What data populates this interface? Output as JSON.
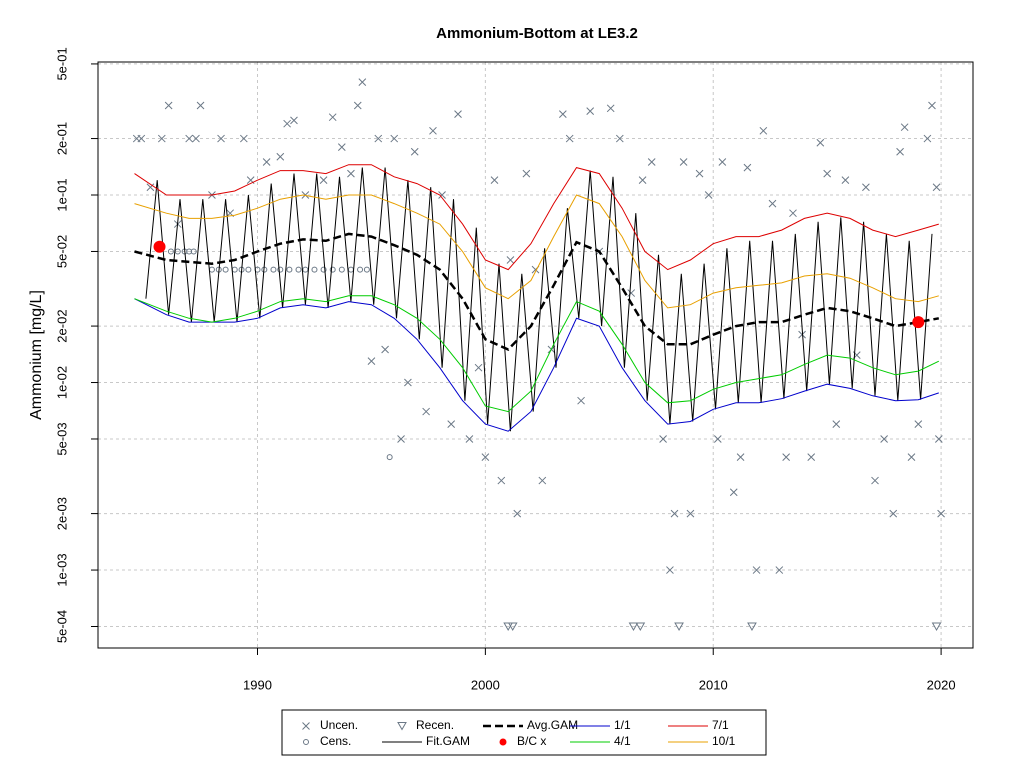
{
  "chart_data": {
    "type": "scatter",
    "title": "Ammonium-Bottom at LE3.2",
    "y_label": "Ammonium [mg/L]",
    "ylog": true,
    "grid": true,
    "xlim": [
      1983.0,
      2021.4
    ],
    "ylim": [
      0.000384,
      0.512
    ],
    "xticks": [
      1990,
      2000,
      2010,
      2020
    ],
    "yticks": [
      {
        "value": 0.0005,
        "label": "5e-04"
      },
      {
        "value": 0.001,
        "label": "1e-03"
      },
      {
        "value": 0.002,
        "label": "2e-03"
      },
      {
        "value": 0.005,
        "label": "5e-03"
      },
      {
        "value": 0.01,
        "label": "1e-02"
      },
      {
        "value": 0.02,
        "label": "2e-02"
      },
      {
        "value": 0.05,
        "label": "5e-02"
      },
      {
        "value": 0.1,
        "label": "1e-01"
      },
      {
        "value": 0.2,
        "label": "2e-01"
      },
      {
        "value": 0.5,
        "label": "5e-01"
      }
    ],
    "series": [
      {
        "name": "Uncen.",
        "color": "#6b7886",
        "marker": "x",
        "x": [
          1984.7,
          1984.9,
          1985.3,
          1985.8,
          1986.1,
          1986.5,
          1987.0,
          1987.3,
          1987.5,
          1988.0,
          1988.4,
          1988.8,
          1989.4,
          1989.7,
          1990.4,
          1991.0,
          1991.3,
          1991.6,
          1992.1,
          1992.9,
          1993.3,
          1993.7,
          1994.1,
          1994.4,
          1994.6,
          1995.0,
          1995.3,
          1995.6,
          1996.0,
          1996.3,
          1996.6,
          1996.9,
          1997.4,
          1997.7,
          1998.1,
          1998.5,
          1998.8,
          1999.3,
          1999.7,
          2000.0,
          2000.4,
          2000.7,
          2001.1,
          2001.4,
          2001.8,
          2002.2,
          2002.5,
          2002.9,
          2003.4,
          2003.7,
          2004.2,
          2004.6,
          2005.0,
          2005.5,
          2005.9,
          2006.4,
          2006.9,
          2007.3,
          2007.8,
          2008.1,
          2008.3,
          2008.7,
          2009.0,
          2009.4,
          2009.8,
          2010.2,
          2010.4,
          2010.9,
          2011.2,
          2011.5,
          2011.9,
          2012.2,
          2012.6,
          2012.9,
          2013.2,
          2013.5,
          2013.9,
          2014.3,
          2014.7,
          2015.0,
          2015.4,
          2015.8,
          2016.3,
          2016.7,
          2017.1,
          2017.5,
          2017.9,
          2018.2,
          2018.4,
          2018.7,
          2019.0,
          2019.4,
          2019.6,
          2019.8,
          2019.9,
          2020.0
        ],
        "values": [
          0.2,
          0.2,
          0.11,
          0.2,
          0.3,
          0.07,
          0.2,
          0.2,
          0.3,
          0.1,
          0.2,
          0.08,
          0.2,
          0.12,
          0.15,
          0.16,
          0.24,
          0.25,
          0.1,
          0.12,
          0.26,
          0.18,
          0.13,
          0.3,
          0.4,
          0.013,
          0.2,
          0.015,
          0.2,
          0.005,
          0.01,
          0.17,
          0.007,
          0.22,
          0.1,
          0.006,
          0.27,
          0.005,
          0.012,
          0.004,
          0.12,
          0.003,
          0.045,
          0.002,
          0.13,
          0.04,
          0.003,
          0.015,
          0.27,
          0.2,
          0.008,
          0.28,
          0.05,
          0.29,
          0.2,
          0.03,
          0.12,
          0.15,
          0.005,
          0.001,
          0.002,
          0.15,
          0.002,
          0.13,
          0.1,
          0.005,
          0.15,
          0.0026,
          0.004,
          0.14,
          0.001,
          0.22,
          0.09,
          0.001,
          0.004,
          0.08,
          0.018,
          0.004,
          0.19,
          0.13,
          0.006,
          0.12,
          0.014,
          0.11,
          0.003,
          0.005,
          0.002,
          0.17,
          0.23,
          0.004,
          0.006,
          0.2,
          0.3,
          0.11,
          0.005,
          0.002
        ]
      },
      {
        "name": "Cens.",
        "color": "#6b7886",
        "marker": "circle",
        "x": [
          1986.2,
          1986.5,
          1986.8,
          1987.0,
          1987.2,
          1988.0,
          1988.3,
          1988.6,
          1989.0,
          1989.3,
          1989.6,
          1990.0,
          1990.3,
          1990.7,
          1991.0,
          1991.4,
          1991.8,
          1992.1,
          1992.5,
          1992.9,
          1993.3,
          1993.7,
          1994.1,
          1994.5,
          1994.8,
          1995.8
        ],
        "values": [
          0.05,
          0.05,
          0.05,
          0.05,
          0.05,
          0.04,
          0.04,
          0.04,
          0.04,
          0.04,
          0.04,
          0.04,
          0.04,
          0.04,
          0.04,
          0.04,
          0.04,
          0.04,
          0.04,
          0.04,
          0.04,
          0.04,
          0.04,
          0.04,
          0.04,
          0.004
        ]
      },
      {
        "name": "Recen.",
        "color": "#6b7886",
        "marker": "triangle",
        "x": [
          2001.0,
          2001.2,
          2006.5,
          2006.8,
          2008.5,
          2011.7,
          2019.8
        ],
        "values": [
          0.0005,
          0.0005,
          0.0005,
          0.0005,
          0.0005,
          0.0005,
          0.0005
        ]
      },
      {
        "name": "Fit.GAM",
        "color": "#000000",
        "marker": "line",
        "width": 1,
        "x": [
          1985.1,
          1985.6,
          1986.1,
          1986.6,
          1987.1,
          1987.6,
          1988.1,
          1988.6,
          1989.1,
          1989.6,
          1990.1,
          1990.6,
          1991.1,
          1991.6,
          1992.1,
          1992.6,
          1993.1,
          1993.6,
          1994.1,
          1994.6,
          1995.1,
          1995.6,
          1996.1,
          1996.6,
          1997.1,
          1997.6,
          1998.1,
          1998.6,
          1999.1,
          1999.6,
          2000.1,
          2000.6,
          2001.1,
          2001.6,
          2002.1,
          2002.6,
          2003.1,
          2003.6,
          2004.1,
          2004.6,
          2005.1,
          2005.6,
          2006.1,
          2006.6,
          2007.1,
          2007.6,
          2008.1,
          2008.6,
          2009.1,
          2009.6,
          2010.1,
          2010.6,
          2011.1,
          2011.6,
          2012.1,
          2012.6,
          2013.1,
          2013.6,
          2014.1,
          2014.6,
          2015.1,
          2015.6,
          2016.1,
          2016.6,
          2017.1,
          2017.6,
          2018.1,
          2018.6,
          2019.1,
          2019.6
        ],
        "values": [
          0.028,
          0.12,
          0.023,
          0.095,
          0.021,
          0.095,
          0.021,
          0.095,
          0.021,
          0.1,
          0.022,
          0.115,
          0.025,
          0.13,
          0.026,
          0.13,
          0.025,
          0.125,
          0.027,
          0.14,
          0.026,
          0.14,
          0.022,
          0.12,
          0.017,
          0.11,
          0.012,
          0.095,
          0.008,
          0.067,
          0.006,
          0.043,
          0.0055,
          0.038,
          0.007,
          0.052,
          0.012,
          0.085,
          0.022,
          0.135,
          0.02,
          0.125,
          0.012,
          0.08,
          0.008,
          0.048,
          0.006,
          0.038,
          0.0062,
          0.043,
          0.0072,
          0.052,
          0.0078,
          0.057,
          0.0078,
          0.057,
          0.0082,
          0.062,
          0.009,
          0.072,
          0.0098,
          0.076,
          0.0093,
          0.072,
          0.0085,
          0.062,
          0.008,
          0.057,
          0.0081,
          0.062
        ]
      },
      {
        "name": "Avg.GAM",
        "color": "#000000",
        "marker": "line",
        "width": 2.5,
        "dash": true,
        "x": [
          1984.6,
          1986,
          1987,
          1988,
          1989,
          1990,
          1991,
          1992,
          1993,
          1994,
          1995,
          1996,
          1997,
          1998,
          1999,
          2000,
          2001,
          2002,
          2003,
          2004,
          2005,
          2006,
          2007,
          2008,
          2009,
          2010,
          2011,
          2012,
          2013,
          2014,
          2015,
          2016,
          2017,
          2018,
          2019,
          2019.9
        ],
        "values": [
          0.05,
          0.045,
          0.044,
          0.043,
          0.045,
          0.05,
          0.055,
          0.058,
          0.057,
          0.062,
          0.06,
          0.054,
          0.048,
          0.04,
          0.028,
          0.017,
          0.015,
          0.02,
          0.033,
          0.056,
          0.05,
          0.032,
          0.02,
          0.016,
          0.016,
          0.018,
          0.02,
          0.021,
          0.021,
          0.023,
          0.025,
          0.024,
          0.022,
          0.02,
          0.021,
          0.022
        ]
      },
      {
        "name": "B/C x",
        "color": "#ff0000",
        "marker": "dot",
        "x": [
          1985.7,
          2019.0
        ],
        "values": [
          0.053,
          0.021
        ]
      },
      {
        "name": "1/1",
        "color": "#0000cc",
        "marker": "line",
        "width": 1,
        "x": [
          1984.6,
          1986,
          1987,
          1988,
          1989,
          1990,
          1991,
          1992,
          1993,
          1994,
          1995,
          1996,
          1997,
          1998,
          1999,
          2000,
          2001,
          2002,
          2003,
          2004,
          2005,
          2006,
          2007,
          2008,
          2009,
          2010,
          2011,
          2012,
          2013,
          2014,
          2015,
          2016,
          2017,
          2018,
          2019,
          2019.9
        ],
        "values": [
          0.028,
          0.023,
          0.021,
          0.021,
          0.021,
          0.022,
          0.025,
          0.026,
          0.025,
          0.027,
          0.026,
          0.022,
          0.017,
          0.012,
          0.008,
          0.006,
          0.0055,
          0.007,
          0.012,
          0.022,
          0.02,
          0.012,
          0.008,
          0.006,
          0.0062,
          0.0072,
          0.0078,
          0.0078,
          0.0082,
          0.009,
          0.0098,
          0.0093,
          0.0085,
          0.008,
          0.0081,
          0.0088
        ]
      },
      {
        "name": "4/1",
        "color": "#00cc00",
        "marker": "line",
        "width": 1,
        "x": [
          1984.6,
          1986,
          1987,
          1988,
          1989,
          1990,
          1991,
          1992,
          1993,
          1994,
          1995,
          1996,
          1997,
          1998,
          1999,
          2000,
          2001,
          2002,
          2003,
          2004,
          2005,
          2006,
          2007,
          2008,
          2009,
          2010,
          2011,
          2012,
          2013,
          2014,
          2015,
          2016,
          2017,
          2018,
          2019,
          2019.9
        ],
        "values": [
          0.028,
          0.024,
          0.022,
          0.021,
          0.022,
          0.024,
          0.027,
          0.028,
          0.027,
          0.029,
          0.029,
          0.026,
          0.022,
          0.017,
          0.012,
          0.0075,
          0.007,
          0.009,
          0.016,
          0.027,
          0.024,
          0.016,
          0.01,
          0.0078,
          0.008,
          0.0092,
          0.01,
          0.0105,
          0.011,
          0.0125,
          0.014,
          0.0135,
          0.012,
          0.011,
          0.0115,
          0.013
        ]
      },
      {
        "name": "7/1",
        "color": "#dd0000",
        "marker": "line",
        "width": 1,
        "x": [
          1984.6,
          1986,
          1987,
          1988,
          1989,
          1990,
          1991,
          1992,
          1993,
          1994,
          1995,
          1996,
          1997,
          1998,
          1999,
          2000,
          2001,
          2002,
          2003,
          2004,
          2005,
          2006,
          2007,
          2008,
          2009,
          2010,
          2011,
          2012,
          2013,
          2014,
          2015,
          2016,
          2017,
          2018,
          2019,
          2019.9
        ],
        "values": [
          0.13,
          0.1,
          0.1,
          0.1,
          0.105,
          0.12,
          0.135,
          0.135,
          0.13,
          0.145,
          0.145,
          0.125,
          0.115,
          0.1,
          0.07,
          0.045,
          0.04,
          0.055,
          0.09,
          0.14,
          0.13,
          0.085,
          0.05,
          0.04,
          0.045,
          0.055,
          0.06,
          0.06,
          0.065,
          0.075,
          0.08,
          0.075,
          0.065,
          0.06,
          0.065,
          0.07
        ]
      },
      {
        "name": "10/1",
        "color": "#e8a000",
        "marker": "line",
        "width": 1,
        "x": [
          1984.6,
          1986,
          1987,
          1988,
          1989,
          1990,
          1991,
          1992,
          1993,
          1994,
          1995,
          1996,
          1997,
          1998,
          1999,
          2000,
          2001,
          2002,
          2003,
          2004,
          2005,
          2006,
          2007,
          2008,
          2009,
          2010,
          2011,
          2012,
          2013,
          2014,
          2015,
          2016,
          2017,
          2018,
          2019,
          2019.9
        ],
        "values": [
          0.09,
          0.08,
          0.075,
          0.075,
          0.078,
          0.085,
          0.095,
          0.1,
          0.095,
          0.1,
          0.1,
          0.09,
          0.08,
          0.07,
          0.05,
          0.032,
          0.028,
          0.035,
          0.06,
          0.1,
          0.09,
          0.06,
          0.035,
          0.025,
          0.026,
          0.03,
          0.032,
          0.033,
          0.034,
          0.037,
          0.038,
          0.036,
          0.032,
          0.028,
          0.027,
          0.029
        ]
      }
    ]
  }
}
